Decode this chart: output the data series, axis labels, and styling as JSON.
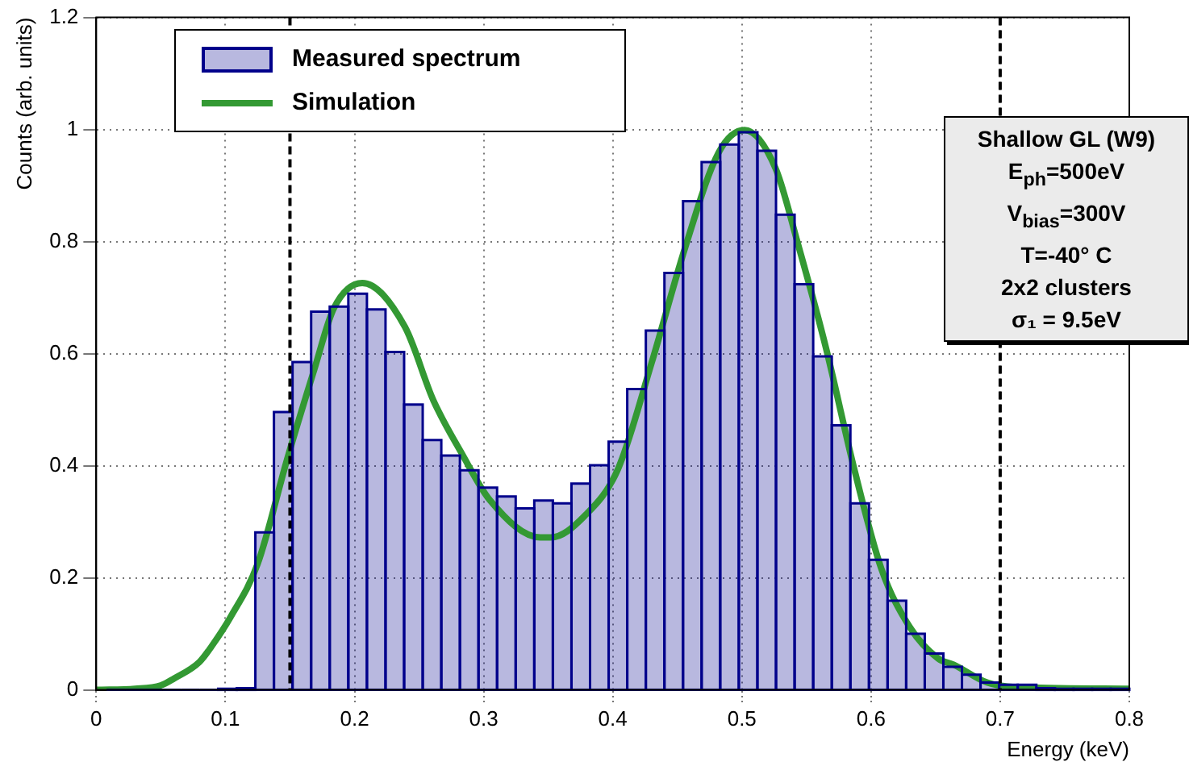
{
  "chart_data": {
    "type": "histogram",
    "xlabel": "Energy (keV)",
    "ylabel": "Counts (arb. units)",
    "xlim": [
      0,
      0.8
    ],
    "xticks": [
      0,
      0.1,
      0.2,
      0.3,
      0.4,
      0.5,
      0.6,
      0.7,
      0.8
    ],
    "ylim": [
      0,
      1.2
    ],
    "yticks": [
      0,
      0.2,
      0.4,
      0.6,
      0.8,
      1,
      1.2
    ],
    "grid": true,
    "legend": "top left",
    "series": [
      {
        "name": "Measured spectrum",
        "type": "histogram",
        "color": "#00008b",
        "bins": [
          0.008,
          0.0224,
          0.0368,
          0.0512,
          0.0656,
          0.08,
          0.0944,
          0.1088,
          0.1232,
          0.1376,
          0.152,
          0.1664,
          0.1808,
          0.1952,
          0.2096,
          0.224,
          0.2384,
          0.2528,
          0.2672,
          0.2816,
          0.296,
          0.3104,
          0.3248,
          0.3392,
          0.3536,
          0.368,
          0.3824,
          0.3968,
          0.4112,
          0.4256,
          0.44,
          0.4544,
          0.4688,
          0.4832,
          0.4976,
          0.512,
          0.5264,
          0.5408,
          0.5552,
          0.5696,
          0.584,
          0.5984,
          0.6128,
          0.6272,
          0.6416,
          0.656,
          0.6704,
          0.6848,
          0.6992,
          0.7136,
          0.728,
          0.7424,
          0.7568,
          0.7712,
          0.7856,
          0.8
        ],
        "values": [
          0,
          0,
          0,
          0,
          0,
          0,
          0.002,
          0.003,
          0.281,
          0.496,
          0.585,
          0.675,
          0.684,
          0.707,
          0.679,
          0.603,
          0.509,
          0.446,
          0.418,
          0.392,
          0.361,
          0.345,
          0.324,
          0.338,
          0.333,
          0.368,
          0.401,
          0.443,
          0.537,
          0.641,
          0.744,
          0.872,
          0.942,
          0.973,
          0.995,
          0.962,
          0.848,
          0.724,
          0.595,
          0.472,
          0.333,
          0.232,
          0.159,
          0.1,
          0.065,
          0.041,
          0.027,
          0.013,
          0.009,
          0.009,
          0.003,
          0.002,
          0.002,
          0.002,
          0.002
        ]
      },
      {
        "name": "Simulation",
        "type": "line",
        "color": "#339933",
        "x": [
          0,
          0.03,
          0.05,
          0.06,
          0.08,
          0.09,
          0.104,
          0.125,
          0.148,
          0.169,
          0.184,
          0.206,
          0.239,
          0.261,
          0.283,
          0.305,
          0.344,
          0.352,
          0.378,
          0.404,
          0.43,
          0.456,
          0.482,
          0.502,
          0.526,
          0.543,
          0.565,
          0.587,
          0.608,
          0.63,
          0.652,
          0.664,
          0.69,
          0.712,
          0.8
        ],
        "values": [
          0,
          0.002,
          0.008,
          0.02,
          0.05,
          0.08,
          0.13,
          0.225,
          0.413,
          0.573,
          0.681,
          0.726,
          0.648,
          0.517,
          0.422,
          0.338,
          0.272,
          0.272,
          0.31,
          0.394,
          0.583,
          0.789,
          0.959,
          0.999,
          0.931,
          0.799,
          0.611,
          0.394,
          0.216,
          0.112,
          0.056,
          0.045,
          0.013,
          0.005,
          0.002
        ]
      }
    ],
    "ref_lines": [
      {
        "axis": "x",
        "value": 0.15,
        "color": "#000000",
        "line_style": "dashed"
      },
      {
        "axis": "x",
        "value": 0.7,
        "color": "#000000",
        "line_style": "dashed"
      }
    ],
    "annotations": [
      "Shallow GL (W9)",
      "E$_{ph}$=500eV",
      "V$_{bias}$=300V",
      "T=-40° C",
      "2x2 clusters",
      "σ₁ = 9.5eV"
    ]
  }
}
